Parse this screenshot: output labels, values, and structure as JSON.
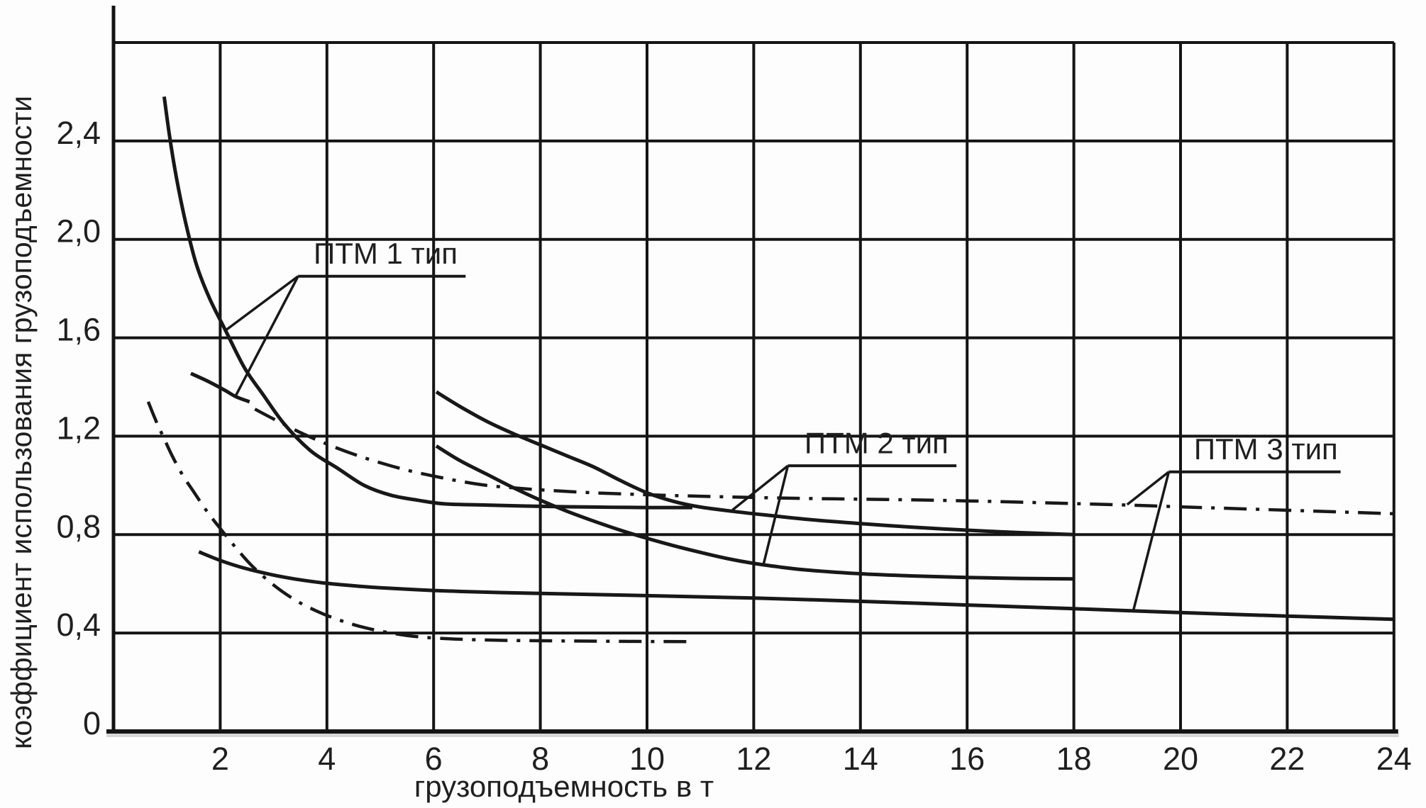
{
  "chart_data": {
    "type": "line",
    "title": "",
    "xlabel": "грузоподъемность в т",
    "ylabel": "коэффициент использования грузоподъемности",
    "xlim": [
      0,
      24
    ],
    "ylim": [
      0,
      2.8
    ],
    "grid": {
      "x_step": 2,
      "y_step": 0.4,
      "y_top_line": 2.8,
      "grid_on": true
    },
    "x_ticks": [
      2,
      4,
      6,
      8,
      10,
      12,
      14,
      16,
      18,
      20,
      22,
      24
    ],
    "x_tick_labels": [
      "2",
      "4",
      "6",
      "8",
      "10",
      "12",
      "14",
      "16",
      "18",
      "20",
      "22",
      "24"
    ],
    "y_ticks": [
      0,
      0.4,
      0.8,
      1.2,
      1.6,
      2.0,
      2.4
    ],
    "y_tick_labels": [
      "0",
      "0,4",
      "0,8",
      "1,2",
      "1,6",
      "2,0",
      "2,4"
    ],
    "colors": {
      "line": "#181818",
      "grid": "#141414",
      "text": "#1f1f1f",
      "background": "#fdfdfd",
      "axis_shadow": "#bdbdbd"
    },
    "series": [
      {
        "id": "ptm1-curve-steep",
        "group": "ПТМ 1 тип",
        "style": "solid",
        "points": [
          [
            0.95,
            2.58
          ],
          [
            1.05,
            2.42
          ],
          [
            1.18,
            2.25
          ],
          [
            1.35,
            2.07
          ],
          [
            1.55,
            1.9
          ],
          [
            1.8,
            1.76
          ],
          [
            2.1,
            1.63
          ],
          [
            2.45,
            1.48
          ],
          [
            2.8,
            1.37
          ],
          [
            3.2,
            1.25
          ],
          [
            3.7,
            1.14
          ],
          [
            4.2,
            1.07
          ],
          [
            4.7,
            1.0
          ],
          [
            5.2,
            0.96
          ],
          [
            5.7,
            0.94
          ],
          [
            6.2,
            0.925
          ],
          [
            7.0,
            0.92
          ],
          [
            8.0,
            0.915
          ],
          [
            9.0,
            0.912
          ],
          [
            10.0,
            0.91
          ],
          [
            10.85,
            0.91
          ]
        ]
      },
      {
        "id": "ptm1-curve-short",
        "group": "ПТМ 1 тип",
        "style": "solid",
        "points": [
          [
            1.45,
            1.455
          ],
          [
            1.8,
            1.42
          ],
          [
            2.1,
            1.385
          ],
          [
            2.3,
            1.36
          ],
          [
            2.55,
            1.34
          ]
        ]
      },
      {
        "id": "ptm2-curve-upper",
        "group": "ПТМ 2 тип",
        "style": "solid",
        "points": [
          [
            6.05,
            1.38
          ],
          [
            6.5,
            1.32
          ],
          [
            7.0,
            1.26
          ],
          [
            7.5,
            1.21
          ],
          [
            8.0,
            1.165
          ],
          [
            8.5,
            1.12
          ],
          [
            9.0,
            1.075
          ],
          [
            9.5,
            1.02
          ],
          [
            10.0,
            0.97
          ],
          [
            10.5,
            0.935
          ],
          [
            11.0,
            0.912
          ],
          [
            11.6,
            0.895
          ],
          [
            12.0,
            0.885
          ],
          [
            13.0,
            0.862
          ],
          [
            14.0,
            0.845
          ],
          [
            15.0,
            0.83
          ],
          [
            16.0,
            0.818
          ],
          [
            17.0,
            0.808
          ],
          [
            18.0,
            0.8
          ]
        ]
      },
      {
        "id": "ptm2-curve-lower",
        "group": "ПТМ 2 тип",
        "style": "solid",
        "points": [
          [
            6.05,
            1.16
          ],
          [
            6.5,
            1.1
          ],
          [
            7.0,
            1.045
          ],
          [
            7.5,
            0.99
          ],
          [
            8.0,
            0.94
          ],
          [
            8.5,
            0.895
          ],
          [
            9.0,
            0.855
          ],
          [
            9.5,
            0.818
          ],
          [
            10.0,
            0.785
          ],
          [
            10.5,
            0.755
          ],
          [
            11.0,
            0.728
          ],
          [
            11.5,
            0.703
          ],
          [
            12.0,
            0.683
          ],
          [
            12.5,
            0.668
          ],
          [
            13.0,
            0.656
          ],
          [
            14.0,
            0.641
          ],
          [
            15.0,
            0.632
          ],
          [
            16.0,
            0.626
          ],
          [
            17.0,
            0.622
          ],
          [
            18.0,
            0.62
          ]
        ]
      },
      {
        "id": "ptm3-dashdot-long",
        "group": "ПТМ 3 тип",
        "style": "dashdot",
        "points": [
          [
            2.65,
            1.31
          ],
          [
            3.0,
            1.27
          ],
          [
            3.5,
            1.215
          ],
          [
            4.0,
            1.168
          ],
          [
            4.5,
            1.127
          ],
          [
            5.0,
            1.092
          ],
          [
            5.5,
            1.062
          ],
          [
            6.0,
            1.038
          ],
          [
            6.5,
            1.017
          ],
          [
            7.0,
            1.0
          ],
          [
            7.5,
            0.99
          ],
          [
            8.0,
            0.982
          ],
          [
            9.0,
            0.97
          ],
          [
            10.0,
            0.962
          ],
          [
            11.0,
            0.956
          ],
          [
            12.0,
            0.951
          ],
          [
            13.0,
            0.947
          ],
          [
            14.0,
            0.944
          ],
          [
            15.0,
            0.941
          ],
          [
            16.0,
            0.937
          ],
          [
            17.0,
            0.932
          ],
          [
            18.0,
            0.926
          ],
          [
            19.0,
            0.92
          ],
          [
            20.0,
            0.913
          ],
          [
            21.0,
            0.906
          ],
          [
            22.0,
            0.899
          ],
          [
            23.0,
            0.892
          ],
          [
            24.0,
            0.885
          ]
        ]
      },
      {
        "id": "ptm3-curve-bottom",
        "group": "ПТМ 3 тип",
        "style": "solid",
        "points": [
          [
            1.6,
            0.73
          ],
          [
            2.0,
            0.695
          ],
          [
            2.4,
            0.667
          ],
          [
            2.8,
            0.645
          ],
          [
            3.2,
            0.627
          ],
          [
            3.6,
            0.613
          ],
          [
            4.0,
            0.602
          ],
          [
            4.5,
            0.592
          ],
          [
            5.0,
            0.584
          ],
          [
            6.0,
            0.573
          ],
          [
            7.0,
            0.566
          ],
          [
            8.0,
            0.561
          ],
          [
            10.0,
            0.552
          ],
          [
            12.0,
            0.542
          ],
          [
            14.0,
            0.529
          ],
          [
            16.0,
            0.514
          ],
          [
            18.0,
            0.499
          ],
          [
            20.0,
            0.483
          ],
          [
            22.0,
            0.469
          ],
          [
            24.0,
            0.456
          ]
        ]
      },
      {
        "id": "dashdot-steep-small",
        "group": "",
        "style": "dashdot",
        "points": [
          [
            0.65,
            1.34
          ],
          [
            0.8,
            1.26
          ],
          [
            0.95,
            1.19
          ],
          [
            1.1,
            1.12
          ],
          [
            1.3,
            1.04
          ],
          [
            1.5,
            0.975
          ],
          [
            1.75,
            0.895
          ],
          [
            2.0,
            0.825
          ],
          [
            2.3,
            0.745
          ],
          [
            2.6,
            0.672
          ],
          [
            3.0,
            0.595
          ],
          [
            3.4,
            0.535
          ],
          [
            3.8,
            0.49
          ],
          [
            4.2,
            0.455
          ],
          [
            4.6,
            0.428
          ],
          [
            5.0,
            0.408
          ],
          [
            5.5,
            0.39
          ],
          [
            6.0,
            0.38
          ],
          [
            6.6,
            0.374
          ],
          [
            7.4,
            0.37
          ],
          [
            8.4,
            0.368
          ],
          [
            9.6,
            0.366
          ],
          [
            10.9,
            0.365
          ]
        ]
      }
    ],
    "annotations": [
      {
        "id": "ptm-1",
        "text": "ПТМ 1 тип",
        "text_pos": [
          5.1,
          1.875
        ],
        "underline": {
          "x1": 3.46,
          "x2": 6.6,
          "y": 1.85
        },
        "leaders": [
          [
            [
              3.46,
              1.85
            ],
            [
              2.1,
              1.63
            ]
          ],
          [
            [
              3.46,
              1.85
            ],
            [
              2.28,
              1.36
            ]
          ]
        ]
      },
      {
        "id": "ptm-2",
        "text": "ПТМ 2 тип",
        "text_pos": [
          14.3,
          1.105
        ],
        "underline": {
          "x1": 12.64,
          "x2": 15.8,
          "y": 1.08
        },
        "leaders": [
          [
            [
              12.64,
              1.08
            ],
            [
              11.6,
              0.9
            ]
          ],
          [
            [
              12.64,
              1.08
            ],
            [
              12.18,
              0.676
            ]
          ]
        ]
      },
      {
        "id": "ptm-3",
        "text": "ПТМ 3 тип",
        "text_pos": [
          21.6,
          1.08
        ],
        "underline": {
          "x1": 19.78,
          "x2": 23.0,
          "y": 1.055
        },
        "leaders": [
          [
            [
              19.78,
              1.055
            ],
            [
              19.0,
              0.922
            ]
          ],
          [
            [
              19.78,
              1.055
            ],
            [
              19.12,
              0.495
            ]
          ]
        ]
      }
    ]
  }
}
